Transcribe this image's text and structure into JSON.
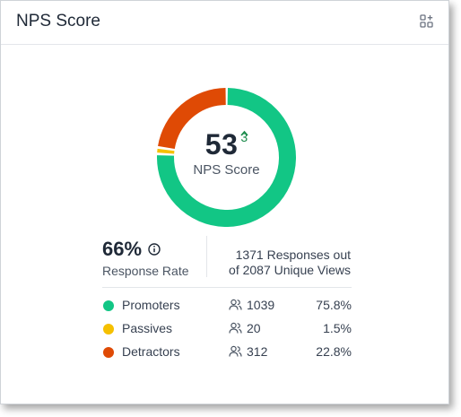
{
  "widget": {
    "title": "NPS Score",
    "add_icon": "add-widget-icon"
  },
  "nps": {
    "score": "53",
    "delta": "3",
    "score_label": "NPS Score",
    "delta_color": "#1a8a4a"
  },
  "response": {
    "rate": "66%",
    "rate_label": "Response Rate",
    "summary_line1": "1371 Responses out",
    "summary_line2": "of 2087 Unique Views"
  },
  "breakdown": [
    {
      "name": "Promoters",
      "count": "1039",
      "percent": "75.8%",
      "share": 75.8,
      "color": "#12c685"
    },
    {
      "name": "Passives",
      "count": "20",
      "percent": "1.5%",
      "share": 1.5,
      "color": "#f5c000"
    },
    {
      "name": "Detractors",
      "count": "312",
      "percent": "22.8%",
      "share": 22.8,
      "color": "#df4a05"
    }
  ]
}
